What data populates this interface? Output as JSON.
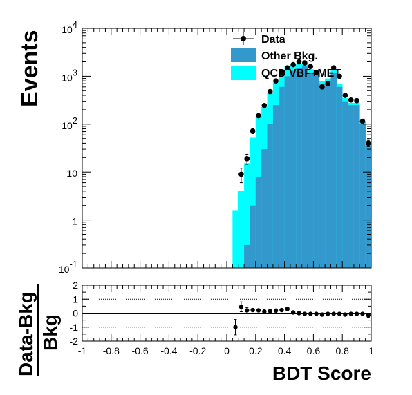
{
  "chart_data": {
    "type": "histogram",
    "xlabel": "BDT Score",
    "x_ticks": [
      "-1",
      "-0.8",
      "-0.6",
      "-0.4",
      "-0.2",
      "0",
      "0.2",
      "0.4",
      "0.6",
      "0.8",
      "1"
    ],
    "main": {
      "ylabel": "Events",
      "yscale": "log",
      "ylim": [
        0.1,
        10000
      ],
      "y_ticks": [
        {
          "value": 0.1,
          "base": "10",
          "exp": "-1"
        },
        {
          "value": 1,
          "base": "1",
          "exp": ""
        },
        {
          "value": 10,
          "base": "10",
          "exp": ""
        },
        {
          "value": 100,
          "base": "10",
          "exp": "2"
        },
        {
          "value": 1000,
          "base": "10",
          "exp": "3"
        },
        {
          "value": 10000,
          "base": "10",
          "exp": "4"
        }
      ],
      "legend": [
        {
          "label": "Data",
          "kind": "marker"
        },
        {
          "label": "Other Bkg.",
          "kind": "fill",
          "color": "#3399cc"
        },
        {
          "label": "QCD VBF+MET",
          "kind": "fill",
          "color": "#00ffff"
        }
      ],
      "bin_width": 0.04,
      "bin_starts": [
        0.04,
        0.08,
        0.12,
        0.16,
        0.2,
        0.24,
        0.28,
        0.32,
        0.36,
        0.4,
        0.44,
        0.48,
        0.52,
        0.56,
        0.6,
        0.64,
        0.68,
        0.72,
        0.76,
        0.8,
        0.84,
        0.88,
        0.92,
        0.96
      ],
      "other_bkg": [
        0.1,
        0.1,
        0.3,
        2,
        8,
        30,
        100,
        250,
        600,
        1000,
        1300,
        1500,
        1600,
        1200,
        1100,
        700,
        800,
        1200,
        600,
        300,
        250,
        250,
        100,
        35
      ],
      "qcd_vbf_met": [
        1.5,
        4,
        15,
        50,
        140,
        200,
        350,
        550,
        700,
        650,
        450,
        350,
        300,
        200,
        150,
        100,
        100,
        200,
        100,
        50,
        30,
        30,
        15,
        10
      ],
      "data": {
        "x": [
          0.06,
          0.1,
          0.14,
          0.18,
          0.22,
          0.26,
          0.3,
          0.34,
          0.38,
          0.42,
          0.46,
          0.5,
          0.54,
          0.58,
          0.62,
          0.66,
          0.7,
          0.74,
          0.78,
          0.82,
          0.86,
          0.9,
          0.94,
          0.98
        ],
        "y": [
          0,
          9,
          19,
          72,
          150,
          245,
          480,
          800,
          1200,
          1500,
          1750,
          2000,
          1900,
          1600,
          1200,
          600,
          700,
          1500,
          1000,
          400,
          320,
          310,
          115,
          40
        ],
        "yerr": [
          0,
          3,
          4.5,
          8.5,
          12,
          16,
          22,
          28,
          35,
          39,
          42,
          45,
          44,
          40,
          35,
          24,
          26,
          39,
          32,
          20,
          18,
          18,
          11,
          6
        ]
      }
    },
    "ratio": {
      "ylabel_numerator": "Data-Bkg",
      "ylabel_denominator": "Bkg",
      "ylim": [
        -2,
        2
      ],
      "y_ticks": [
        "-2",
        "-1",
        "0",
        "1",
        "2"
      ],
      "x": [
        0.06,
        0.1,
        0.14,
        0.18,
        0.22,
        0.26,
        0.3,
        0.34,
        0.38,
        0.42,
        0.46,
        0.5,
        0.54,
        0.58,
        0.62,
        0.66,
        0.7,
        0.74,
        0.78,
        0.82,
        0.86,
        0.9,
        0.94,
        0.98
      ],
      "y": [
        -1.0,
        0.45,
        0.2,
        0.22,
        0.2,
        0.12,
        0.15,
        0.18,
        0.22,
        0.3,
        0.05,
        0.0,
        -0.05,
        -0.05,
        -0.05,
        -0.1,
        -0.05,
        -0.05,
        -0.05,
        -0.1,
        -0.05,
        -0.05,
        -0.05,
        -0.15
      ],
      "yerr": [
        0.55,
        0.35,
        0.2,
        0.12,
        0.09,
        0.07,
        0.06,
        0.05,
        0.04,
        0.04,
        0.03,
        0.03,
        0.03,
        0.03,
        0.03,
        0.04,
        0.04,
        0.03,
        0.04,
        0.05,
        0.06,
        0.06,
        0.1,
        0.15
      ]
    }
  }
}
